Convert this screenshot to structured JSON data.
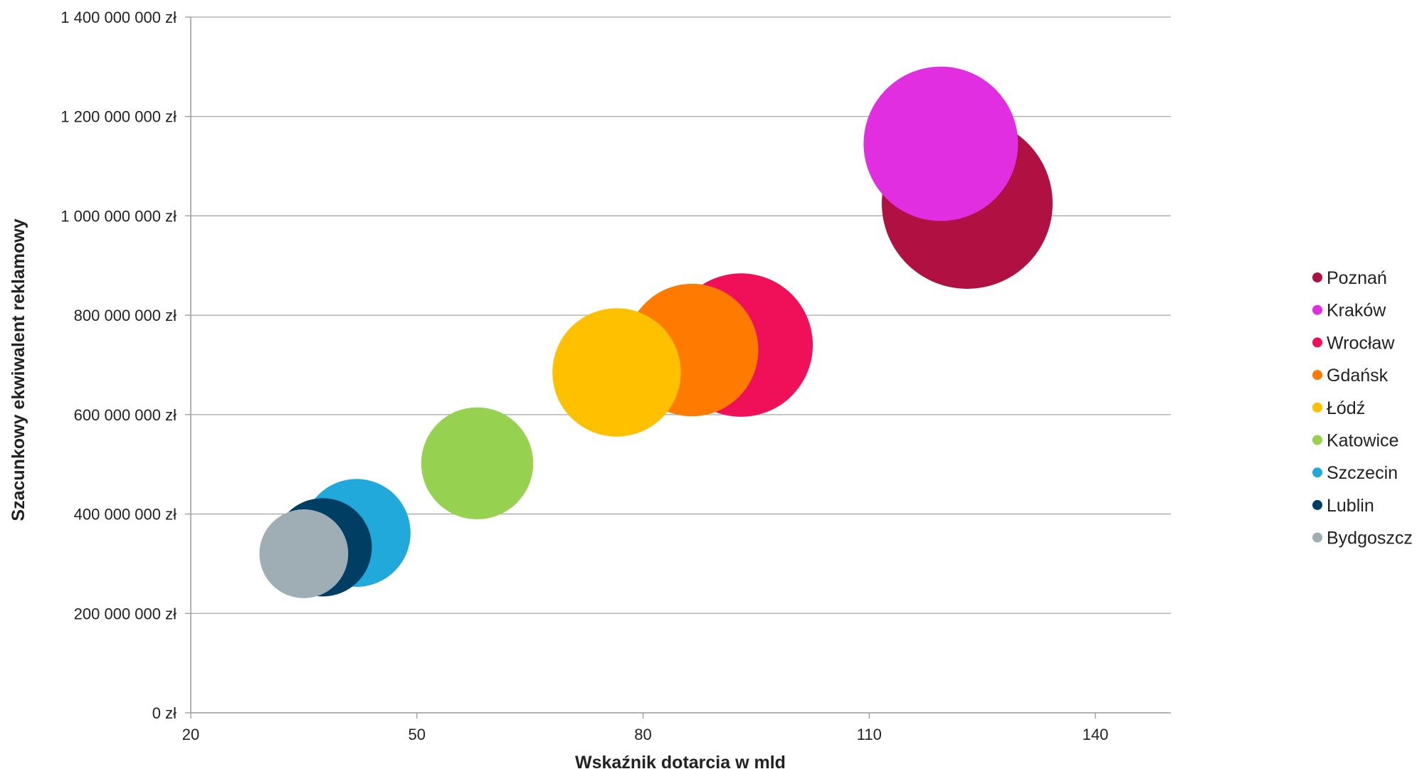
{
  "chart_data": {
    "type": "bubble",
    "xlabel": "Wskaźnik dotarcia w mld",
    "ylabel": "Szacunkowy ekwiwalent reklamowy",
    "xlim": [
      20,
      150
    ],
    "ylim": [
      0,
      1400000000
    ],
    "x_ticks": [
      20,
      50,
      80,
      110,
      140
    ],
    "x_tick_labels": [
      "20",
      "50",
      "80",
      "110",
      "140"
    ],
    "y_ticks": [
      0,
      200000000,
      400000000,
      600000000,
      800000000,
      1000000000,
      1200000000,
      1400000000
    ],
    "y_tick_labels": [
      "0 zł",
      "200 000 000 zł",
      "400 000 000 zł",
      "600 000 000 zł",
      "800 000 000 zł",
      "1 000 000 000 zł",
      "1 200 000 000 zł",
      "1 400 000 000 zł"
    ],
    "grid": "horizontal",
    "legend_position": "right",
    "series": [
      {
        "name": "Poznań",
        "x": 123,
        "y": 1025000000,
        "size": 125,
        "color": "#b01042"
      },
      {
        "name": "Kraków",
        "x": 119.5,
        "y": 1145000000,
        "size": 113,
        "color": "#e02ee0"
      },
      {
        "name": "Wrocław",
        "x": 93,
        "y": 740000000,
        "size": 105,
        "color": "#f0105a"
      },
      {
        "name": "Gdańsk",
        "x": 86.5,
        "y": 730000000,
        "size": 97,
        "color": "#ff7a00"
      },
      {
        "name": "Łódź",
        "x": 76.5,
        "y": 685000000,
        "size": 94,
        "color": "#ffc000"
      },
      {
        "name": "Katowice",
        "x": 58,
        "y": 502000000,
        "size": 82,
        "color": "#96d150"
      },
      {
        "name": "Szczecin",
        "x": 42,
        "y": 362000000,
        "size": 79,
        "color": "#22a9dc"
      },
      {
        "name": "Lublin",
        "x": 37.5,
        "y": 333000000,
        "size": 72,
        "color": "#003f63"
      },
      {
        "name": "Bydgoszcz",
        "x": 35,
        "y": 320000000,
        "size": 65,
        "color": "#9fadb5"
      }
    ]
  }
}
